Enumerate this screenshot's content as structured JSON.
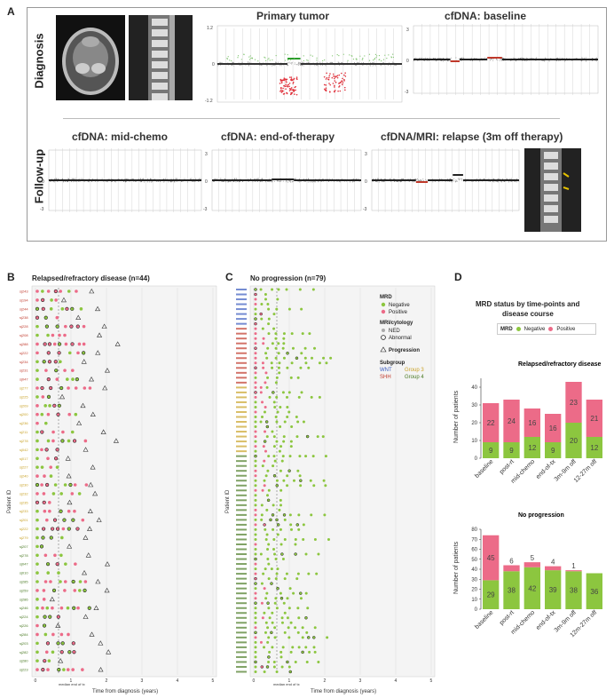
{
  "panelA": {
    "letter": "A",
    "row_diagnosis": "Diagnosis",
    "row_followup": "Follow-up",
    "plots": {
      "primary_tumor": "Primary tumor",
      "cfdna_baseline": "cfDNA: baseline",
      "cfdna_midchemo": "cfDNA: mid-chemo",
      "cfdna_endtherapy": "cfDNA: end-of-therapy",
      "cfdna_relapse": "cfDNA/MRI: relapse (3m off therapy)"
    },
    "tick_labels": {
      "primary": [
        "1.2",
        "0",
        "-1.2"
      ],
      "cfdna": [
        "3",
        "0",
        "-3"
      ]
    }
  },
  "panelB": {
    "letter": "B",
    "title": "Relapsed/refractory disease (n=44)",
    "ylabel": "Patient ID",
    "xlabel": "Time from diagnosis (years)",
    "xticks": [
      "0",
      "1",
      "2",
      "3",
      "4",
      "5"
    ],
    "median_label": "median end of tx",
    "patients": [
      "sj243",
      "sj194",
      "sj244",
      "sj238",
      "sj228",
      "sj208",
      "sj288",
      "sj222",
      "sj234",
      "sj231",
      "sj047",
      "sj277",
      "sj225",
      "sj209",
      "sj200",
      "sj236",
      "sj211",
      "sj278",
      "sj042",
      "sj017",
      "sj227",
      "sj240",
      "sj230",
      "sj232",
      "sj235",
      "sj233",
      "sj201",
      "sj222",
      "sj279",
      "sj207",
      "sj278",
      "sj047",
      "sj010",
      "sj285",
      "sj259",
      "sj286",
      "sj246",
      "sj224",
      "sj226",
      "sj284",
      "sj203",
      "sj282",
      "sj280",
      "sj223"
    ],
    "colors": [
      "#c0392b",
      "#c0392b",
      "#c0392b",
      "#c0392b",
      "#c0392b",
      "#c0392b",
      "#c0392b",
      "#c0392b",
      "#c0392b",
      "#c0392b",
      "#c0392b",
      "#c9a227",
      "#c9a227",
      "#c9a227",
      "#c9a227",
      "#c9a227",
      "#c9a227",
      "#c9a227",
      "#c9a227",
      "#c9a227",
      "#c9a227",
      "#c9a227",
      "#c9a227",
      "#c9a227",
      "#c9a227",
      "#c9a227",
      "#c9a227",
      "#c9a227",
      "#c9a227",
      "#4a7a24",
      "#4a7a24",
      "#4a7a24",
      "#4a7a24",
      "#4a7a24",
      "#4a7a24",
      "#4a7a24",
      "#4a7a24",
      "#4a7a24",
      "#4a7a24",
      "#4a7a24",
      "#4a7a24",
      "#4a7a24",
      "#4a7a24",
      "#4a7a24"
    ]
  },
  "panelC": {
    "letter": "C",
    "title": "No progression (n=79)",
    "ylabel": "Patient ID",
    "xlabel": "Time from diagnosis (years)",
    "xticks": [
      "0",
      "1",
      "2",
      "3",
      "4",
      "5"
    ],
    "median_label": "median end of tx",
    "patient_count": 79,
    "legend": {
      "mrd_title": "MRD",
      "negative": "Negative",
      "positive": "Positive",
      "mri_title": "MRI/cytology",
      "ned": "NED",
      "abnormal": "Abnormal",
      "progression": "Progression",
      "subgroup_title": "Subgroup",
      "wnt": "WNT",
      "group3": "Group 3",
      "shh": "SHH",
      "group4": "Group 4"
    }
  },
  "panelD": {
    "letter": "D",
    "title_line1": "MRD status by time-points and",
    "title_line2": "disease course",
    "legend_mrd": "MRD",
    "legend_negative": "Negative",
    "legend_positive": "Positive",
    "colors": {
      "negative": "#8cc63f",
      "positive": "#ec6b88"
    }
  },
  "chart_data": [
    {
      "type": "bar",
      "title": "Relapsed/refractory disease",
      "ylabel": "Number of patients",
      "categories": [
        "baseline",
        "post-rt",
        "mid-chemo",
        "end-of-tx",
        "3m-9m off",
        "12-27m off"
      ],
      "series": [
        {
          "name": "Negative",
          "values": [
            9,
            9,
            12,
            9,
            20,
            12
          ]
        },
        {
          "name": "Positive",
          "values": [
            22,
            24,
            16,
            16,
            23,
            21
          ]
        }
      ],
      "yticks": [
        0,
        10,
        20,
        30,
        40
      ],
      "ylim": [
        0,
        45
      ]
    },
    {
      "type": "bar",
      "title": "No progression",
      "ylabel": "Number of patients",
      "categories": [
        "baseline",
        "post-rt",
        "mid-chemo",
        "end-of-tx",
        "3m-9m off",
        "12m-27m off"
      ],
      "series": [
        {
          "name": "Negative",
          "values": [
            29,
            38,
            42,
            39,
            38,
            36
          ]
        },
        {
          "name": "Positive",
          "values": [
            45,
            6,
            5,
            4,
            1,
            0
          ]
        }
      ],
      "data_labels_positive": [
        "45",
        "6",
        "5",
        "4",
        "1",
        ""
      ],
      "yticks": [
        0,
        10,
        20,
        30,
        40,
        50,
        60,
        70,
        80
      ],
      "ylim": [
        0,
        80
      ]
    }
  ]
}
